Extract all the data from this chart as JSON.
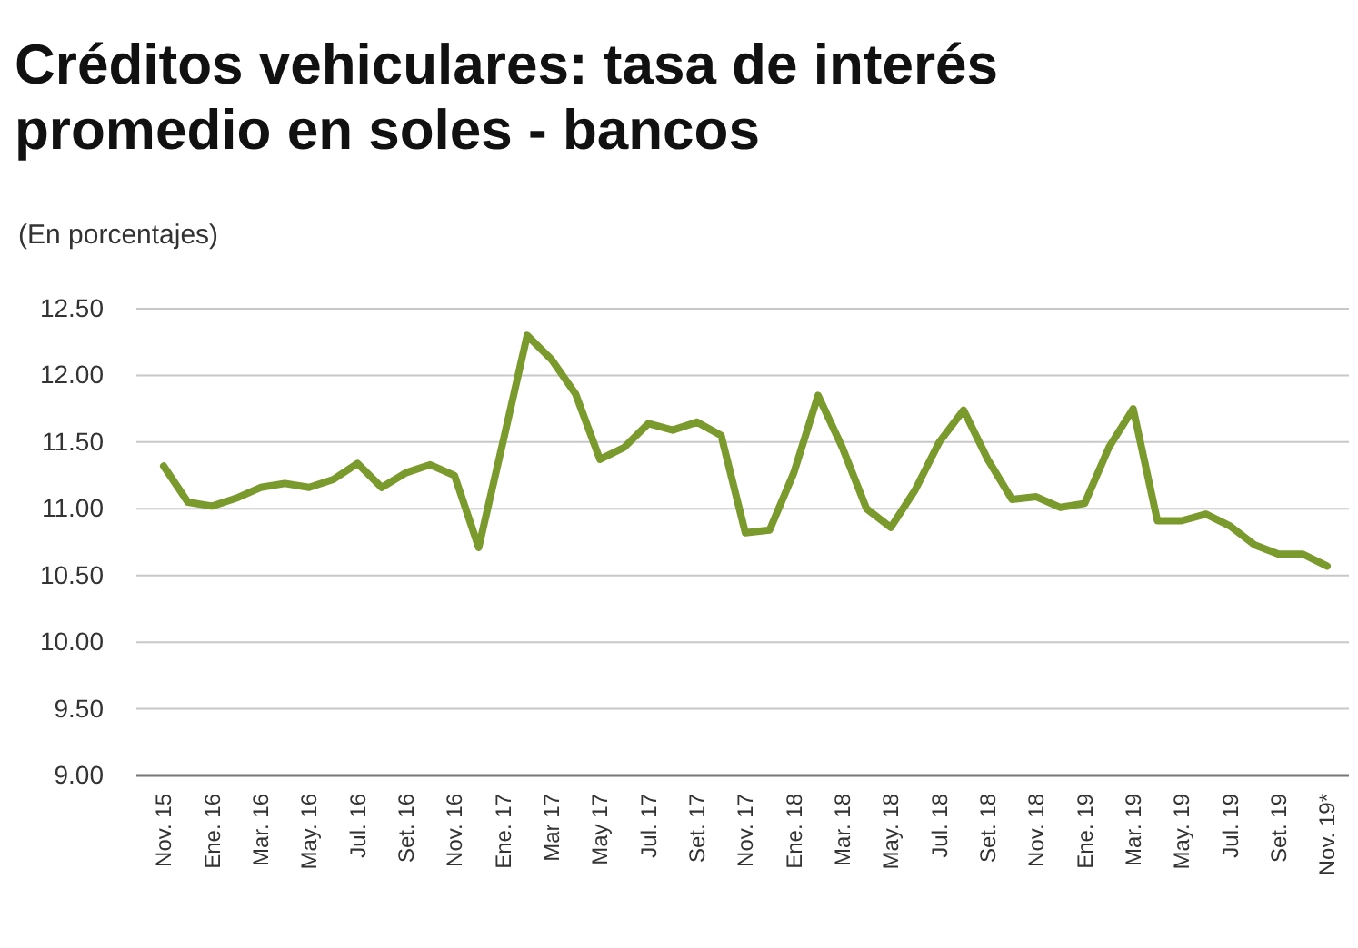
{
  "chart_data": {
    "type": "line",
    "title": "Créditos vehiculares: tasa de interés promedio en soles - bancos",
    "subtitle": "(En porcentajes)",
    "categories": [
      "Nov. 15",
      null,
      "Ene. 16",
      null,
      "Mar. 16",
      null,
      "May. 16",
      null,
      "Jul. 16",
      null,
      "Set. 16",
      null,
      "Nov. 16",
      null,
      "Ene. 17",
      null,
      "Mar 17",
      null,
      "May 17",
      null,
      "Jul. 17",
      null,
      "Set. 17",
      null,
      "Nov. 17",
      null,
      "Ene. 18",
      null,
      "Mar. 18",
      null,
      "May. 18",
      null,
      "Jul. 18",
      null,
      "Set. 18",
      null,
      "Nov. 18",
      null,
      "Ene. 19",
      null,
      "Mar. 19",
      null,
      "May. 19",
      null,
      "Jul. 19",
      null,
      "Set. 19",
      null,
      "Nov. 19*"
    ],
    "series": [
      {
        "color": "#7a9a2e",
        "values": [
          11.32,
          11.05,
          11.02,
          11.08,
          11.16,
          11.19,
          11.16,
          11.22,
          11.34,
          11.16,
          11.27,
          11.33,
          11.25,
          10.71,
          11.5,
          12.3,
          12.12,
          11.86,
          11.37,
          11.46,
          11.64,
          11.59,
          11.65,
          11.55,
          10.82,
          10.84,
          11.27,
          11.85,
          11.46,
          11.0,
          10.86,
          11.14,
          11.5,
          11.74,
          11.37,
          11.07,
          11.09,
          11.01,
          11.04,
          11.46,
          11.75,
          10.91,
          10.91,
          10.96,
          10.87,
          10.73,
          10.66,
          10.66,
          10.57
        ]
      }
    ],
    "ylim": [
      9,
      12.5
    ],
    "yticks": [
      {
        "value": 9,
        "label": "9.00"
      },
      {
        "value": 9.5,
        "label": "9.50"
      },
      {
        "value": 10,
        "label": "10.00"
      },
      {
        "value": 10.5,
        "label": "10.50"
      },
      {
        "value": 11,
        "label": "11.00"
      },
      {
        "value": 11.5,
        "label": "11.50"
      },
      {
        "value": 12,
        "label": "12.00"
      },
      {
        "value": 12.5,
        "label": "12.50"
      }
    ],
    "grid": "y",
    "marker": "none",
    "line_style": "solid"
  }
}
